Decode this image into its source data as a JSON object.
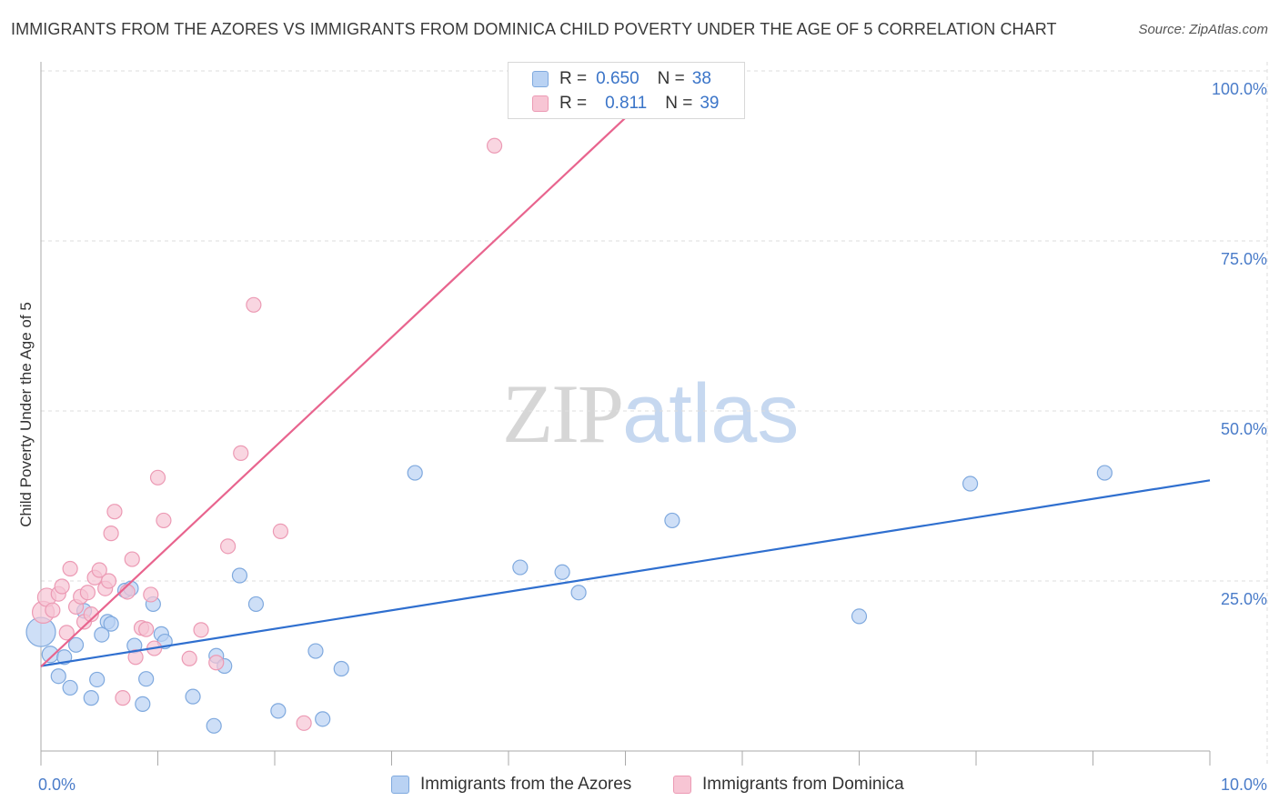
{
  "header": {
    "title": "IMMIGRANTS FROM THE AZORES VS IMMIGRANTS FROM DOMINICA CHILD POVERTY UNDER THE AGE OF 5 CORRELATION CHART",
    "source": "Source: ZipAtlas.com"
  },
  "watermark": {
    "zip": "ZIP",
    "atlas": "atlas"
  },
  "legend_stats": {
    "azores": {
      "r_label": "R =",
      "r_value": "0.650",
      "n_label": "N =",
      "n_value": "38"
    },
    "dominica": {
      "r_label": "R =",
      "r_value": "0.811",
      "n_label": "N =",
      "n_value": "39"
    }
  },
  "colors": {
    "azores_fill": "#b9d2f3",
    "azores_stroke": "#7fa9de",
    "azores_line": "#2f6fcf",
    "dominica_fill": "#f7c5d4",
    "dominica_stroke": "#ec9ab4",
    "dominica_line": "#e8648e",
    "grid": "#dddddd",
    "tick_text": "#4a7cc9"
  },
  "chart_data": {
    "type": "scatter",
    "title": "IMMIGRANTS FROM THE AZORES VS IMMIGRANTS FROM DOMINICA CHILD POVERTY UNDER THE AGE OF 5 CORRELATION CHART",
    "xlabel": "",
    "ylabel": "Child Poverty Under the Age of 5",
    "xlim": [
      0,
      10
    ],
    "ylim": [
      0,
      100
    ],
    "x_tick_labels": [
      "0.0%",
      "10.0%"
    ],
    "y_ticks": [
      25,
      50,
      75,
      100
    ],
    "y_tick_labels": [
      "25.0%",
      "50.0%",
      "75.0%",
      "100.0%"
    ],
    "grid": true,
    "legend_position": "bottom",
    "series": [
      {
        "name": "Immigrants from the Azores",
        "color": "#b9d2f3",
        "points": [
          {
            "x": 0.0,
            "y": 17.5,
            "s": 16
          },
          {
            "x": 0.08,
            "y": 14.2,
            "s": 9
          },
          {
            "x": 0.15,
            "y": 11.0,
            "s": 8
          },
          {
            "x": 0.2,
            "y": 13.8,
            "s": 8
          },
          {
            "x": 0.25,
            "y": 9.3,
            "s": 8
          },
          {
            "x": 0.3,
            "y": 15.6,
            "s": 8
          },
          {
            "x": 0.37,
            "y": 20.6,
            "s": 8
          },
          {
            "x": 0.43,
            "y": 7.8,
            "s": 8
          },
          {
            "x": 0.48,
            "y": 10.5,
            "s": 8
          },
          {
            "x": 0.52,
            "y": 17.1,
            "s": 8
          },
          {
            "x": 0.57,
            "y": 19.0,
            "s": 8
          },
          {
            "x": 0.6,
            "y": 18.7,
            "s": 8
          },
          {
            "x": 0.72,
            "y": 23.6,
            "s": 8
          },
          {
            "x": 0.77,
            "y": 23.9,
            "s": 8
          },
          {
            "x": 0.8,
            "y": 15.5,
            "s": 8
          },
          {
            "x": 0.87,
            "y": 6.9,
            "s": 8
          },
          {
            "x": 0.9,
            "y": 10.6,
            "s": 8
          },
          {
            "x": 0.96,
            "y": 21.6,
            "s": 8
          },
          {
            "x": 1.03,
            "y": 17.2,
            "s": 8
          },
          {
            "x": 1.06,
            "y": 16.1,
            "s": 8
          },
          {
            "x": 1.3,
            "y": 8.0,
            "s": 8
          },
          {
            "x": 1.48,
            "y": 3.7,
            "s": 8
          },
          {
            "x": 1.5,
            "y": 14.0,
            "s": 8
          },
          {
            "x": 1.57,
            "y": 12.5,
            "s": 8
          },
          {
            "x": 1.7,
            "y": 25.8,
            "s": 8
          },
          {
            "x": 1.84,
            "y": 21.6,
            "s": 8
          },
          {
            "x": 2.03,
            "y": 5.9,
            "s": 8
          },
          {
            "x": 2.35,
            "y": 14.7,
            "s": 8
          },
          {
            "x": 2.41,
            "y": 4.7,
            "s": 8
          },
          {
            "x": 2.57,
            "y": 12.1,
            "s": 8
          },
          {
            "x": 3.2,
            "y": 40.9,
            "s": 8
          },
          {
            "x": 4.1,
            "y": 27.0,
            "s": 8
          },
          {
            "x": 4.46,
            "y": 26.3,
            "s": 8
          },
          {
            "x": 4.6,
            "y": 23.3,
            "s": 8
          },
          {
            "x": 5.4,
            "y": 33.9,
            "s": 8
          },
          {
            "x": 7.0,
            "y": 19.8,
            "s": 8
          },
          {
            "x": 7.95,
            "y": 39.3,
            "s": 8
          },
          {
            "x": 9.1,
            "y": 40.9,
            "s": 8
          }
        ]
      },
      {
        "name": "Immigrants from Dominica",
        "color": "#f7c5d4",
        "points": [
          {
            "x": 0.02,
            "y": 20.4,
            "s": 12
          },
          {
            "x": 0.05,
            "y": 22.6,
            "s": 10
          },
          {
            "x": 0.1,
            "y": 20.7,
            "s": 8
          },
          {
            "x": 0.15,
            "y": 23.1,
            "s": 8
          },
          {
            "x": 0.18,
            "y": 24.2,
            "s": 8
          },
          {
            "x": 0.22,
            "y": 17.4,
            "s": 8
          },
          {
            "x": 0.25,
            "y": 26.8,
            "s": 8
          },
          {
            "x": 0.3,
            "y": 21.2,
            "s": 8
          },
          {
            "x": 0.34,
            "y": 22.7,
            "s": 8
          },
          {
            "x": 0.37,
            "y": 19.0,
            "s": 8
          },
          {
            "x": 0.4,
            "y": 23.3,
            "s": 8
          },
          {
            "x": 0.43,
            "y": 20.1,
            "s": 8
          },
          {
            "x": 0.46,
            "y": 25.5,
            "s": 8
          },
          {
            "x": 0.5,
            "y": 26.6,
            "s": 8
          },
          {
            "x": 0.55,
            "y": 23.9,
            "s": 8
          },
          {
            "x": 0.58,
            "y": 25.0,
            "s": 8
          },
          {
            "x": 0.6,
            "y": 32.0,
            "s": 8
          },
          {
            "x": 0.63,
            "y": 35.2,
            "s": 8
          },
          {
            "x": 0.7,
            "y": 7.8,
            "s": 8
          },
          {
            "x": 0.74,
            "y": 23.4,
            "s": 8
          },
          {
            "x": 0.78,
            "y": 28.2,
            "s": 8
          },
          {
            "x": 0.81,
            "y": 13.8,
            "s": 8
          },
          {
            "x": 0.86,
            "y": 18.1,
            "s": 8
          },
          {
            "x": 0.9,
            "y": 17.9,
            "s": 8
          },
          {
            "x": 0.94,
            "y": 23.0,
            "s": 8
          },
          {
            "x": 0.97,
            "y": 15.1,
            "s": 8
          },
          {
            "x": 1.0,
            "y": 40.2,
            "s": 8
          },
          {
            "x": 1.05,
            "y": 33.9,
            "s": 8
          },
          {
            "x": 1.27,
            "y": 13.6,
            "s": 8
          },
          {
            "x": 1.37,
            "y": 17.8,
            "s": 8
          },
          {
            "x": 1.5,
            "y": 13.0,
            "s": 8
          },
          {
            "x": 1.6,
            "y": 30.1,
            "s": 8
          },
          {
            "x": 1.71,
            "y": 43.8,
            "s": 8
          },
          {
            "x": 1.82,
            "y": 65.6,
            "s": 8
          },
          {
            "x": 2.05,
            "y": 32.3,
            "s": 8
          },
          {
            "x": 2.25,
            "y": 4.1,
            "s": 8
          },
          {
            "x": 3.88,
            "y": 89.0,
            "s": 8
          },
          {
            "x": 4.2,
            "y": 100.0,
            "s": 8
          },
          {
            "x": 4.38,
            "y": 100.0,
            "s": 8
          }
        ]
      }
    ],
    "trend_lines": [
      {
        "series": "Immigrants from the Azores",
        "x": [
          0,
          10
        ],
        "y": [
          12.5,
          39.8
        ]
      },
      {
        "series": "Immigrants from Dominica",
        "x": [
          0,
          5.0
        ],
        "y": [
          12.4,
          93.1
        ]
      }
    ]
  }
}
